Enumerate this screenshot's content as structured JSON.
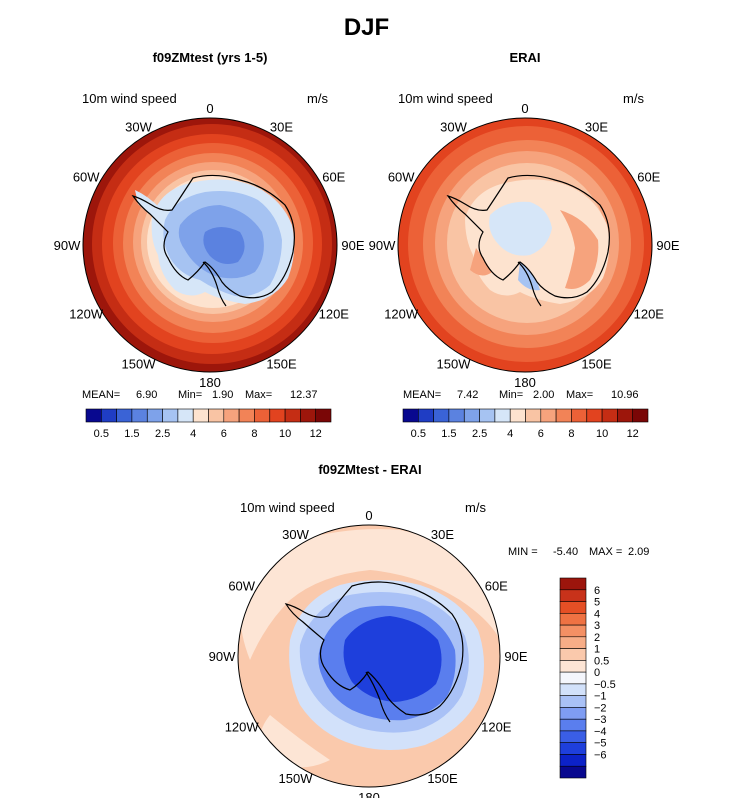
{
  "figure_title": "DJF",
  "panels": [
    {
      "title": "f09ZMtest (yrs 1-5)",
      "variable": "10m wind speed",
      "units": "m/s",
      "lon_labels": [
        "0",
        "30E",
        "60E",
        "90E",
        "120E",
        "150E",
        "180",
        "150W",
        "120W",
        "90W",
        "60W",
        "30W"
      ],
      "stats": {
        "mean_label": "MEAN=",
        "mean": "6.90",
        "min_label": "Min=",
        "min": "1.90",
        "max_label": "Max=",
        "max": "12.37"
      }
    },
    {
      "title": "ERAI",
      "variable": "10m wind speed",
      "units": "m/s",
      "lon_labels": [
        "0",
        "30E",
        "60E",
        "90E",
        "120E",
        "150E",
        "180",
        "150W",
        "120W",
        "90W",
        "60W",
        "30W"
      ],
      "stats": {
        "mean_label": "MEAN=",
        "mean": "7.42",
        "min_label": "Min=",
        "min": "2.00",
        "max_label": "Max=",
        "max": "10.96"
      }
    },
    {
      "title": "f09ZMtest - ERAI",
      "variable": "10m wind speed",
      "units": "m/s",
      "lon_labels": [
        "0",
        "30E",
        "60E",
        "90E",
        "120E",
        "150E",
        "180",
        "150W",
        "120W",
        "90W",
        "60W",
        "30W"
      ],
      "stats": {
        "min_label": "MIN =",
        "min": "-5.40",
        "max_label": "MAX =",
        "max": "2.09"
      }
    }
  ],
  "colorbars": {
    "abs_colors": [
      "#08088f",
      "#1f3dc4",
      "#3a63d6",
      "#5b82e0",
      "#7ea2ea",
      "#a6c3f2",
      "#d6e6f8",
      "#fde3cf",
      "#f9c4a4",
      "#f6a37d",
      "#f28357",
      "#ec6137",
      "#e2431f",
      "#c52d14",
      "#9d160b",
      "#7a0606"
    ],
    "abs_labels": [
      "0.5",
      "1.5",
      "2.5",
      "4",
      "6",
      "8",
      "10",
      "12"
    ],
    "diff_colors": [
      "#08088f",
      "#0c22c8",
      "#1e3fdc",
      "#3a5ee6",
      "#5a7eee",
      "#7f9df3",
      "#a9c1f6",
      "#d2e1fa",
      "#f4f6fc",
      "#fde5d5",
      "#fac9ac",
      "#f7ad87",
      "#f49064",
      "#ef7243",
      "#e54f25",
      "#c8321a",
      "#9c150c"
    ],
    "diff_labels": [
      "−6",
      "−5",
      "−4",
      "−3",
      "−2",
      "−1",
      "−0.5",
      "0",
      "0.5",
      "1",
      "2",
      "3",
      "4",
      "5",
      "6"
    ]
  },
  "chart_data": [
    {
      "type": "heatmap",
      "projection": "south polar stereographic",
      "title": "f09ZMtest (yrs 1-5)",
      "variable": "10m wind speed",
      "units": "m/s",
      "mean": 6.9,
      "min": 1.9,
      "max": 12.37,
      "levels": [
        0.5,
        1,
        1.5,
        2,
        2.5,
        3,
        4,
        5,
        6,
        7,
        8,
        9,
        10,
        11,
        12
      ],
      "colorbar_labels": [
        "0.5",
        "1.5",
        "2.5",
        "4",
        "6",
        "8",
        "10",
        "12"
      ]
    },
    {
      "type": "heatmap",
      "projection": "south polar stereographic",
      "title": "ERAI",
      "variable": "10m wind speed",
      "units": "m/s",
      "mean": 7.42,
      "min": 2.0,
      "max": 10.96,
      "levels": [
        0.5,
        1,
        1.5,
        2,
        2.5,
        3,
        4,
        5,
        6,
        7,
        8,
        9,
        10,
        11,
        12
      ],
      "colorbar_labels": [
        "0.5",
        "1.5",
        "2.5",
        "4",
        "6",
        "8",
        "10",
        "12"
      ]
    },
    {
      "type": "heatmap",
      "projection": "south polar stereographic",
      "title": "f09ZMtest - ERAI",
      "variable": "10m wind speed",
      "units": "m/s",
      "min": -5.4,
      "max": 2.09,
      "levels": [
        -6,
        -5,
        -4,
        -3,
        -2,
        -1,
        -0.5,
        0,
        0.5,
        1,
        2,
        3,
        4,
        5,
        6
      ],
      "colorbar_labels": [
        "−6",
        "−5",
        "−4",
        "−3",
        "−2",
        "−1",
        "−0.5",
        "0",
        "0.5",
        "1",
        "2",
        "3",
        "4",
        "5",
        "6"
      ]
    }
  ]
}
